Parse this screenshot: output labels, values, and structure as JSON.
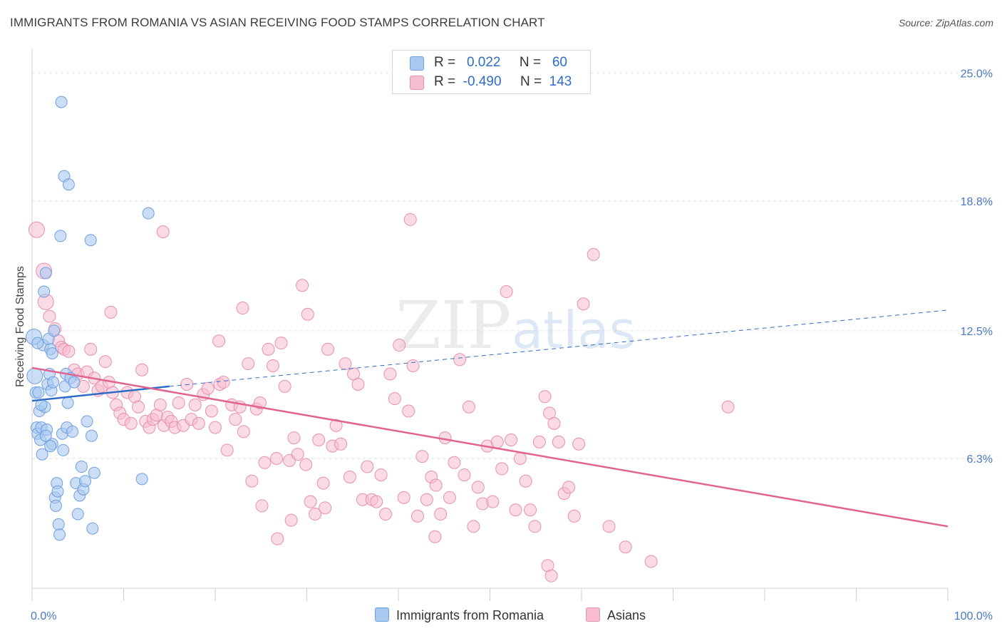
{
  "title": "IMMIGRANTS FROM ROMANIA VS ASIAN RECEIVING FOOD STAMPS CORRELATION CHART",
  "source": "Source: ZipAtlas.com",
  "watermark": {
    "zip": "ZIP",
    "atlas": "atlas"
  },
  "colors": {
    "blue_fill": "#a9c8f0",
    "blue_stroke": "#6f9fe0",
    "blue_line": "#2f6cc7",
    "pink_fill": "#f6bcd0",
    "pink_stroke": "#e890ae",
    "pink_line": "#e0648f",
    "grid": "#e2e2e2"
  },
  "legend": {
    "rows": [
      {
        "r_label": "R =",
        "r_value": "0.022",
        "n_label": "N =",
        "n_value": "60"
      },
      {
        "r_label": "R =",
        "r_value": "-0.490",
        "n_label": "N =",
        "n_value": "143"
      }
    ]
  },
  "bottom_legend": {
    "series1": "Immigrants from Romania",
    "series2": "Asians"
  },
  "chart_data": {
    "type": "scatter",
    "title": "IMMIGRANTS FROM ROMANIA VS ASIAN RECEIVING FOOD STAMPS CORRELATION CHART",
    "xlabel": "",
    "ylabel": "Receiving Food Stamps",
    "xlim": [
      0,
      100
    ],
    "ylim": [
      0,
      26.2
    ],
    "x_tick_labels": [
      "0.0%",
      "100.0%"
    ],
    "y_ticks": [
      6.3,
      12.5,
      18.8,
      25.0
    ],
    "y_tick_labels": [
      "6.3%",
      "12.5%",
      "18.8%",
      "25.0%"
    ],
    "grid": true,
    "series": [
      {
        "name": "Immigrants from Romania",
        "color": "blue",
        "trend": {
          "x": [
            0,
            15
          ],
          "y": [
            9.1,
            9.8
          ],
          "dashed_to": [
            100,
            13.5
          ]
        },
        "points": [
          [
            0.2,
            12.2
          ],
          [
            0.3,
            10.3
          ],
          [
            0.4,
            9.5
          ],
          [
            0.5,
            7.8
          ],
          [
            0.6,
            7.5
          ],
          [
            0.7,
            9.5
          ],
          [
            0.8,
            8.6
          ],
          [
            0.9,
            7.2
          ],
          [
            1.0,
            7.8
          ],
          [
            1.1,
            6.5
          ],
          [
            1.2,
            11.8
          ],
          [
            1.3,
            14.4
          ],
          [
            1.4,
            8.8
          ],
          [
            1.5,
            15.3
          ],
          [
            1.6,
            7.7
          ],
          [
            1.7,
            9.9
          ],
          [
            1.8,
            12.1
          ],
          [
            1.9,
            10.4
          ],
          [
            2.0,
            11.6
          ],
          [
            2.1,
            9.6
          ],
          [
            2.2,
            7.0
          ],
          [
            2.3,
            10.0
          ],
          [
            2.4,
            12.5
          ],
          [
            2.5,
            4.4
          ],
          [
            2.6,
            4.0
          ],
          [
            2.7,
            5.1
          ],
          [
            2.8,
            4.7
          ],
          [
            2.9,
            3.1
          ],
          [
            3.0,
            2.6
          ],
          [
            3.1,
            17.1
          ],
          [
            3.2,
            23.6
          ],
          [
            3.3,
            7.5
          ],
          [
            3.4,
            6.7
          ],
          [
            3.5,
            20.0
          ],
          [
            3.6,
            9.8
          ],
          [
            3.7,
            10.4
          ],
          [
            3.8,
            7.8
          ],
          [
            3.9,
            9.0
          ],
          [
            4.0,
            19.6
          ],
          [
            4.2,
            10.2
          ],
          [
            4.4,
            7.6
          ],
          [
            4.6,
            10.0
          ],
          [
            4.8,
            5.1
          ],
          [
            5.0,
            3.6
          ],
          [
            5.2,
            4.5
          ],
          [
            5.4,
            5.9
          ],
          [
            5.6,
            4.8
          ],
          [
            5.8,
            5.2
          ],
          [
            6.0,
            8.1
          ],
          [
            6.4,
            16.9
          ],
          [
            6.5,
            7.4
          ],
          [
            6.8,
            5.6
          ],
          [
            0.6,
            11.9
          ],
          [
            1.0,
            8.9
          ],
          [
            1.5,
            7.4
          ],
          [
            2.0,
            6.9
          ],
          [
            2.2,
            11.4
          ],
          [
            6.6,
            2.9
          ],
          [
            12.0,
            5.3
          ],
          [
            12.7,
            18.2
          ]
        ]
      },
      {
        "name": "Asians",
        "color": "pink",
        "trend": {
          "x": [
            0,
            100
          ],
          "y": [
            10.7,
            3.0
          ]
        },
        "points": [
          [
            0.5,
            17.4
          ],
          [
            1.3,
            15.4
          ],
          [
            1.5,
            13.9
          ],
          [
            1.9,
            13.2
          ],
          [
            2.5,
            12.6
          ],
          [
            2.9,
            12.0
          ],
          [
            3.2,
            11.7
          ],
          [
            3.5,
            11.6
          ],
          [
            4.0,
            11.5
          ],
          [
            4.6,
            10.6
          ],
          [
            5.0,
            10.4
          ],
          [
            5.6,
            9.8
          ],
          [
            6.0,
            10.5
          ],
          [
            6.4,
            11.6
          ],
          [
            6.8,
            10.2
          ],
          [
            7.2,
            9.6
          ],
          [
            7.6,
            9.8
          ],
          [
            8.0,
            11.0
          ],
          [
            8.4,
            10.0
          ],
          [
            8.8,
            9.5
          ],
          [
            9.2,
            8.9
          ],
          [
            9.6,
            8.5
          ],
          [
            10.0,
            8.2
          ],
          [
            10.4,
            9.5
          ],
          [
            10.8,
            8.0
          ],
          [
            11.2,
            9.3
          ],
          [
            11.6,
            8.8
          ],
          [
            12.0,
            10.6
          ],
          [
            12.4,
            8.1
          ],
          [
            12.8,
            7.8
          ],
          [
            13.2,
            8.2
          ],
          [
            13.6,
            8.4
          ],
          [
            14.0,
            8.9
          ],
          [
            14.4,
            7.9
          ],
          [
            14.8,
            8.3
          ],
          [
            15.2,
            8.1
          ],
          [
            15.6,
            7.8
          ],
          [
            16.0,
            9.0
          ],
          [
            16.5,
            7.9
          ],
          [
            16.9,
            9.9
          ],
          [
            17.4,
            8.2
          ],
          [
            17.8,
            8.9
          ],
          [
            18.2,
            8.0
          ],
          [
            18.7,
            9.4
          ],
          [
            19.2,
            9.7
          ],
          [
            19.6,
            8.6
          ],
          [
            20.0,
            7.8
          ],
          [
            20.5,
            9.9
          ],
          [
            20.9,
            10.0
          ],
          [
            21.3,
            6.7
          ],
          [
            21.8,
            8.9
          ],
          [
            22.2,
            8.2
          ],
          [
            22.7,
            8.8
          ],
          [
            23.1,
            7.6
          ],
          [
            23.6,
            10.9
          ],
          [
            24.0,
            5.2
          ],
          [
            24.5,
            8.7
          ],
          [
            24.9,
            9.0
          ],
          [
            25.4,
            6.1
          ],
          [
            25.8,
            11.6
          ],
          [
            26.3,
            10.8
          ],
          [
            26.7,
            6.3
          ],
          [
            27.2,
            11.9
          ],
          [
            27.6,
            9.8
          ],
          [
            28.1,
            6.2
          ],
          [
            28.6,
            7.3
          ],
          [
            29.0,
            6.5
          ],
          [
            29.5,
            14.7
          ],
          [
            29.9,
            6.0
          ],
          [
            30.4,
            4.2
          ],
          [
            30.9,
            3.6
          ],
          [
            31.3,
            7.2
          ],
          [
            31.8,
            5.1
          ],
          [
            32.3,
            11.6
          ],
          [
            32.8,
            6.9
          ],
          [
            33.2,
            7.9
          ],
          [
            33.7,
            7.0
          ],
          [
            34.2,
            10.9
          ],
          [
            34.7,
            5.4
          ],
          [
            35.1,
            10.4
          ],
          [
            35.6,
            9.9
          ],
          [
            36.1,
            4.3
          ],
          [
            36.6,
            5.9
          ],
          [
            37.1,
            4.3
          ],
          [
            37.6,
            4.2
          ],
          [
            38.1,
            5.5
          ],
          [
            38.6,
            3.6
          ],
          [
            39.1,
            10.4
          ],
          [
            39.6,
            9.2
          ],
          [
            40.1,
            11.8
          ],
          [
            40.6,
            4.4
          ],
          [
            41.1,
            8.6
          ],
          [
            41.6,
            10.8
          ],
          [
            42.1,
            3.5
          ],
          [
            42.6,
            6.4
          ],
          [
            43.1,
            4.3
          ],
          [
            43.6,
            5.4
          ],
          [
            44.1,
            5.0
          ],
          [
            44.6,
            3.6
          ],
          [
            45.1,
            7.3
          ],
          [
            45.6,
            4.4
          ],
          [
            46.1,
            6.1
          ],
          [
            46.7,
            11.1
          ],
          [
            47.2,
            5.5
          ],
          [
            47.7,
            8.8
          ],
          [
            48.2,
            3.0
          ],
          [
            48.7,
            4.9
          ],
          [
            49.2,
            4.1
          ],
          [
            49.7,
            6.9
          ],
          [
            50.3,
            4.2
          ],
          [
            50.8,
            7.1
          ],
          [
            51.3,
            5.8
          ],
          [
            51.8,
            14.4
          ],
          [
            52.3,
            7.2
          ],
          [
            52.8,
            3.8
          ],
          [
            53.3,
            6.3
          ],
          [
            53.9,
            5.2
          ],
          [
            54.4,
            3.8
          ],
          [
            54.9,
            3.0
          ],
          [
            55.4,
            7.1
          ],
          [
            56.0,
            9.3
          ],
          [
            56.5,
            8.5
          ],
          [
            57.0,
            8.0
          ],
          [
            57.5,
            7.1
          ],
          [
            58.1,
            4.6
          ],
          [
            58.6,
            4.9
          ],
          [
            59.2,
            3.5
          ],
          [
            59.7,
            7.0
          ],
          [
            60.2,
            13.8
          ],
          [
            61.3,
            16.2
          ],
          [
            63.0,
            3.0
          ],
          [
            64.8,
            2.0
          ],
          [
            67.6,
            1.3
          ],
          [
            76.0,
            8.8
          ],
          [
            41.3,
            17.9
          ],
          [
            44.0,
            2.5
          ],
          [
            56.3,
            1.1
          ],
          [
            56.7,
            0.6
          ],
          [
            30.1,
            13.3
          ],
          [
            8.6,
            13.4
          ],
          [
            14.3,
            17.3
          ],
          [
            20.4,
            12.0
          ],
          [
            23.0,
            13.6
          ],
          [
            25.1,
            4.0
          ],
          [
            26.8,
            2.4
          ],
          [
            28.3,
            3.3
          ],
          [
            32.0,
            3.9
          ]
        ]
      }
    ]
  }
}
